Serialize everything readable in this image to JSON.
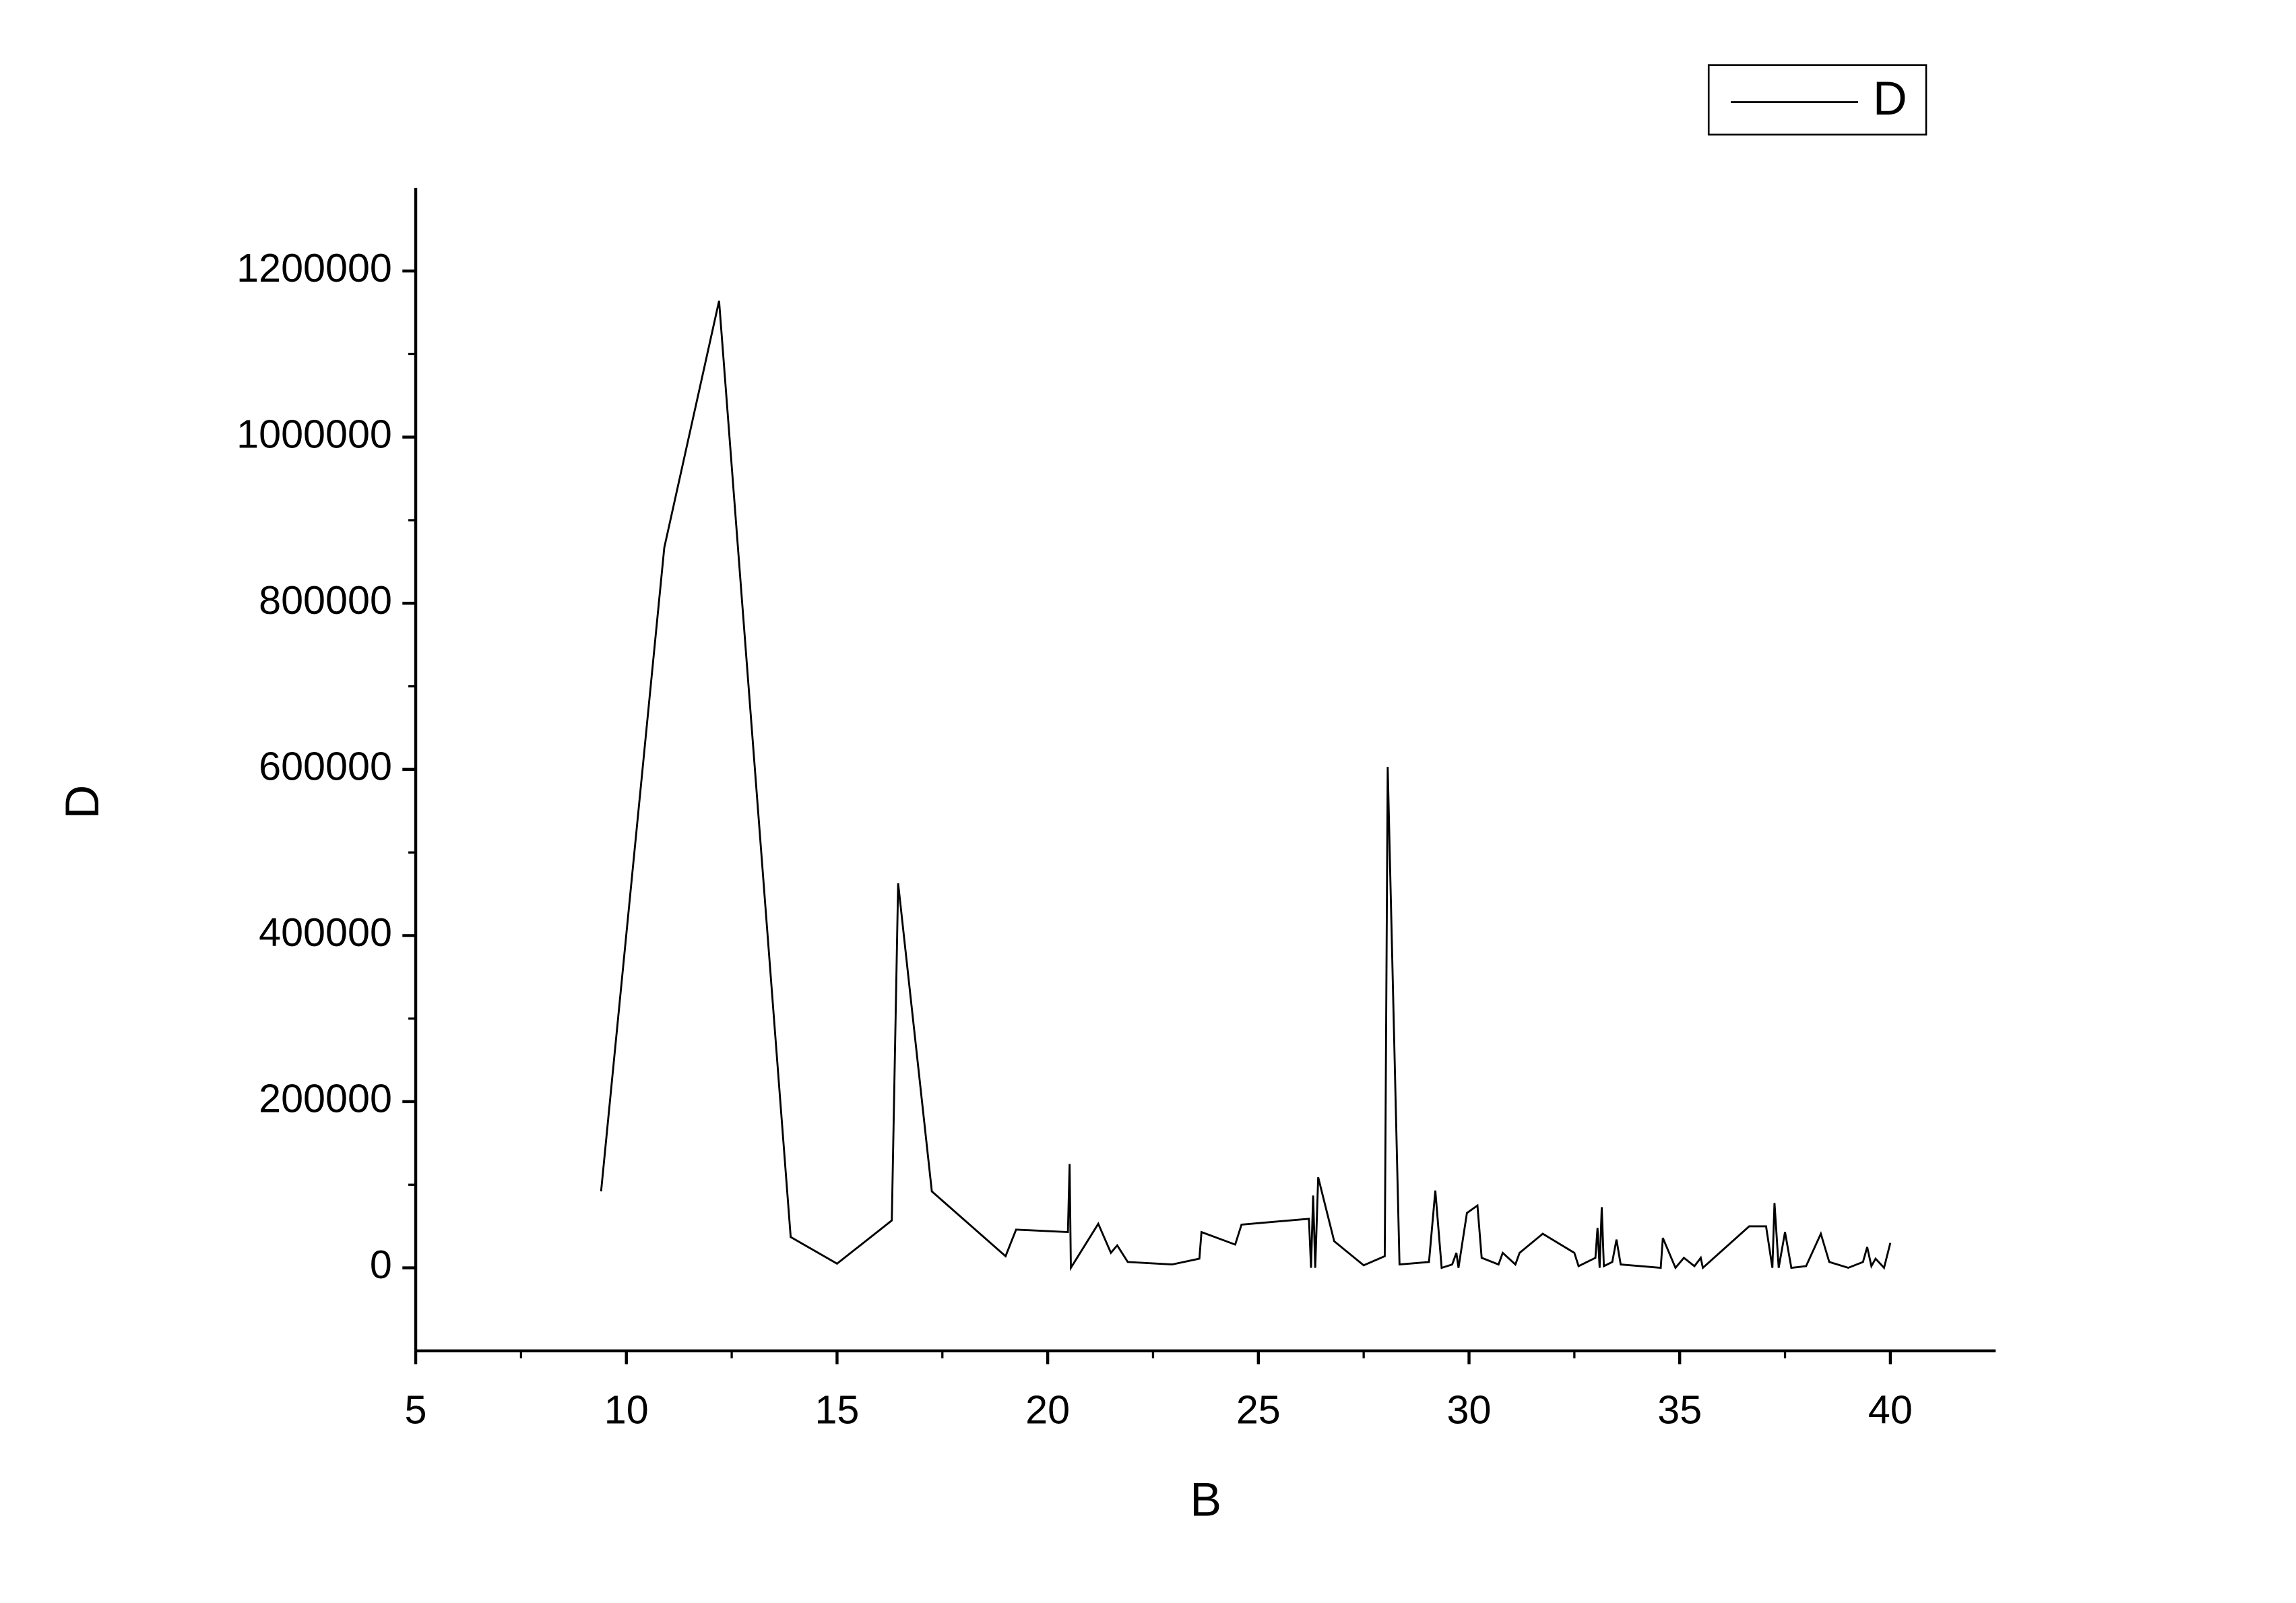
{
  "chart_data": {
    "type": "line",
    "x_label": "B",
    "y_label": "D",
    "xlim": [
      5,
      42.5
    ],
    "xticks": [
      5,
      10,
      15,
      20,
      25,
      30,
      35,
      40
    ],
    "ylim": [
      -100000,
      1300000
    ],
    "yticks": [
      0,
      200000,
      400000,
      600000,
      800000,
      1000000,
      1200000
    ],
    "grid": false,
    "legend": "top-right",
    "x": [
      9.4,
      10.9,
      12.2,
      13.9,
      15.0,
      16.3,
      16.45,
      17.25,
      19.0,
      19.25,
      20.48,
      20.52,
      20.55,
      21.2,
      21.5,
      21.65,
      21.9,
      22.95,
      23.6,
      23.65,
      24.45,
      24.6,
      26.2,
      26.25,
      26.3,
      26.35,
      26.42,
      26.8,
      27.5,
      28.0,
      28.07,
      28.35,
      29.05,
      29.2,
      29.35,
      29.6,
      29.7,
      29.75,
      29.95,
      30.2,
      30.3,
      30.7,
      30.8,
      31.1,
      31.2,
      31.75,
      32.5,
      32.6,
      33.0,
      33.05,
      33.1,
      33.15,
      33.2,
      33.4,
      33.5,
      33.6,
      34.55,
      34.6,
      34.9,
      35.1,
      35.35,
      35.5,
      35.55,
      36.65,
      37.05,
      37.2,
      37.25,
      37.35,
      37.5,
      37.65,
      38.0,
      38.35,
      38.55,
      39.0,
      39.35,
      39.45,
      39.55,
      39.65,
      39.85,
      40.0
    ],
    "series": [
      {
        "name": "D",
        "color": "#000000",
        "values": [
          92000,
          867000,
          1164000,
          37000,
          5000,
          57000,
          463000,
          92000,
          14000,
          46000,
          43000,
          125000,
          0,
          53000,
          18000,
          27000,
          7000,
          4000,
          11000,
          43000,
          28000,
          52000,
          59000,
          0,
          87000,
          0,
          109000,
          32000,
          3000,
          14000,
          603000,
          4000,
          7000,
          93000,
          0,
          4000,
          18000,
          0,
          66000,
          75000,
          12000,
          4000,
          18000,
          4000,
          18000,
          41000,
          18000,
          2000,
          12000,
          48000,
          0,
          73000,
          2000,
          7000,
          34000,
          4000,
          0,
          36000,
          0,
          12000,
          2000,
          12000,
          0,
          50000,
          50000,
          0,
          78000,
          0,
          43000,
          0,
          2000,
          41000,
          7000,
          0,
          7000,
          25000,
          2000,
          11000,
          0,
          30000
        ]
      }
    ]
  }
}
